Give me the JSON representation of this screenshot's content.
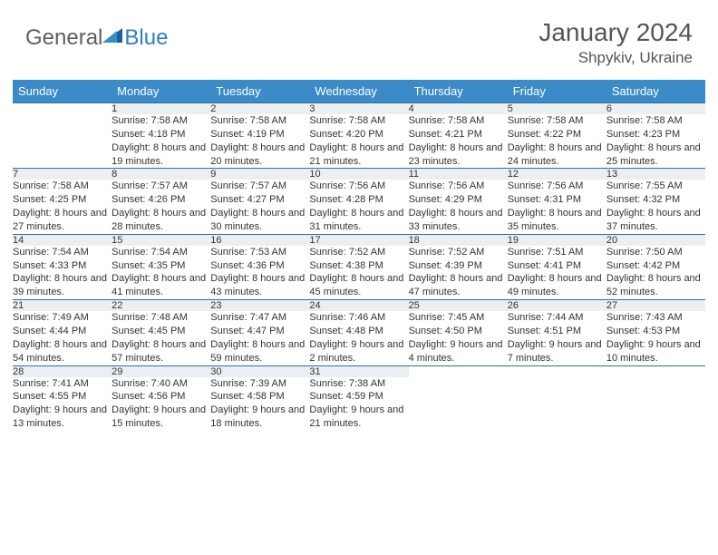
{
  "logo": {
    "word1": "General",
    "word2": "Blue"
  },
  "title": "January 2024",
  "subtitle": "Shpykiv, Ukraine",
  "colors": {
    "header_bg": "#3b8bc8",
    "header_text": "#ffffff",
    "rule": "#2d6fa3",
    "daynum_bg": "#eceff1",
    "text": "#333333",
    "logo_gray": "#5f5f5f",
    "logo_blue": "#2f7fbf"
  },
  "daysOfWeek": [
    "Sunday",
    "Monday",
    "Tuesday",
    "Wednesday",
    "Thursday",
    "Friday",
    "Saturday"
  ],
  "weeks": [
    [
      null,
      {
        "n": "1",
        "sr": "7:58 AM",
        "ss": "4:18 PM",
        "dl": "8 hours and 19 minutes."
      },
      {
        "n": "2",
        "sr": "7:58 AM",
        "ss": "4:19 PM",
        "dl": "8 hours and 20 minutes."
      },
      {
        "n": "3",
        "sr": "7:58 AM",
        "ss": "4:20 PM",
        "dl": "8 hours and 21 minutes."
      },
      {
        "n": "4",
        "sr": "7:58 AM",
        "ss": "4:21 PM",
        "dl": "8 hours and 23 minutes."
      },
      {
        "n": "5",
        "sr": "7:58 AM",
        "ss": "4:22 PM",
        "dl": "8 hours and 24 minutes."
      },
      {
        "n": "6",
        "sr": "7:58 AM",
        "ss": "4:23 PM",
        "dl": "8 hours and 25 minutes."
      }
    ],
    [
      {
        "n": "7",
        "sr": "7:58 AM",
        "ss": "4:25 PM",
        "dl": "8 hours and 27 minutes."
      },
      {
        "n": "8",
        "sr": "7:57 AM",
        "ss": "4:26 PM",
        "dl": "8 hours and 28 minutes."
      },
      {
        "n": "9",
        "sr": "7:57 AM",
        "ss": "4:27 PM",
        "dl": "8 hours and 30 minutes."
      },
      {
        "n": "10",
        "sr": "7:56 AM",
        "ss": "4:28 PM",
        "dl": "8 hours and 31 minutes."
      },
      {
        "n": "11",
        "sr": "7:56 AM",
        "ss": "4:29 PM",
        "dl": "8 hours and 33 minutes."
      },
      {
        "n": "12",
        "sr": "7:56 AM",
        "ss": "4:31 PM",
        "dl": "8 hours and 35 minutes."
      },
      {
        "n": "13",
        "sr": "7:55 AM",
        "ss": "4:32 PM",
        "dl": "8 hours and 37 minutes."
      }
    ],
    [
      {
        "n": "14",
        "sr": "7:54 AM",
        "ss": "4:33 PM",
        "dl": "8 hours and 39 minutes."
      },
      {
        "n": "15",
        "sr": "7:54 AM",
        "ss": "4:35 PM",
        "dl": "8 hours and 41 minutes."
      },
      {
        "n": "16",
        "sr": "7:53 AM",
        "ss": "4:36 PM",
        "dl": "8 hours and 43 minutes."
      },
      {
        "n": "17",
        "sr": "7:52 AM",
        "ss": "4:38 PM",
        "dl": "8 hours and 45 minutes."
      },
      {
        "n": "18",
        "sr": "7:52 AM",
        "ss": "4:39 PM",
        "dl": "8 hours and 47 minutes."
      },
      {
        "n": "19",
        "sr": "7:51 AM",
        "ss": "4:41 PM",
        "dl": "8 hours and 49 minutes."
      },
      {
        "n": "20",
        "sr": "7:50 AM",
        "ss": "4:42 PM",
        "dl": "8 hours and 52 minutes."
      }
    ],
    [
      {
        "n": "21",
        "sr": "7:49 AM",
        "ss": "4:44 PM",
        "dl": "8 hours and 54 minutes."
      },
      {
        "n": "22",
        "sr": "7:48 AM",
        "ss": "4:45 PM",
        "dl": "8 hours and 57 minutes."
      },
      {
        "n": "23",
        "sr": "7:47 AM",
        "ss": "4:47 PM",
        "dl": "8 hours and 59 minutes."
      },
      {
        "n": "24",
        "sr": "7:46 AM",
        "ss": "4:48 PM",
        "dl": "9 hours and 2 minutes."
      },
      {
        "n": "25",
        "sr": "7:45 AM",
        "ss": "4:50 PM",
        "dl": "9 hours and 4 minutes."
      },
      {
        "n": "26",
        "sr": "7:44 AM",
        "ss": "4:51 PM",
        "dl": "9 hours and 7 minutes."
      },
      {
        "n": "27",
        "sr": "7:43 AM",
        "ss": "4:53 PM",
        "dl": "9 hours and 10 minutes."
      }
    ],
    [
      {
        "n": "28",
        "sr": "7:41 AM",
        "ss": "4:55 PM",
        "dl": "9 hours and 13 minutes."
      },
      {
        "n": "29",
        "sr": "7:40 AM",
        "ss": "4:56 PM",
        "dl": "9 hours and 15 minutes."
      },
      {
        "n": "30",
        "sr": "7:39 AM",
        "ss": "4:58 PM",
        "dl": "9 hours and 18 minutes."
      },
      {
        "n": "31",
        "sr": "7:38 AM",
        "ss": "4:59 PM",
        "dl": "9 hours and 21 minutes."
      },
      null,
      null,
      null
    ]
  ],
  "labels": {
    "sunrise": "Sunrise:",
    "sunset": "Sunset:",
    "daylight": "Daylight:"
  }
}
